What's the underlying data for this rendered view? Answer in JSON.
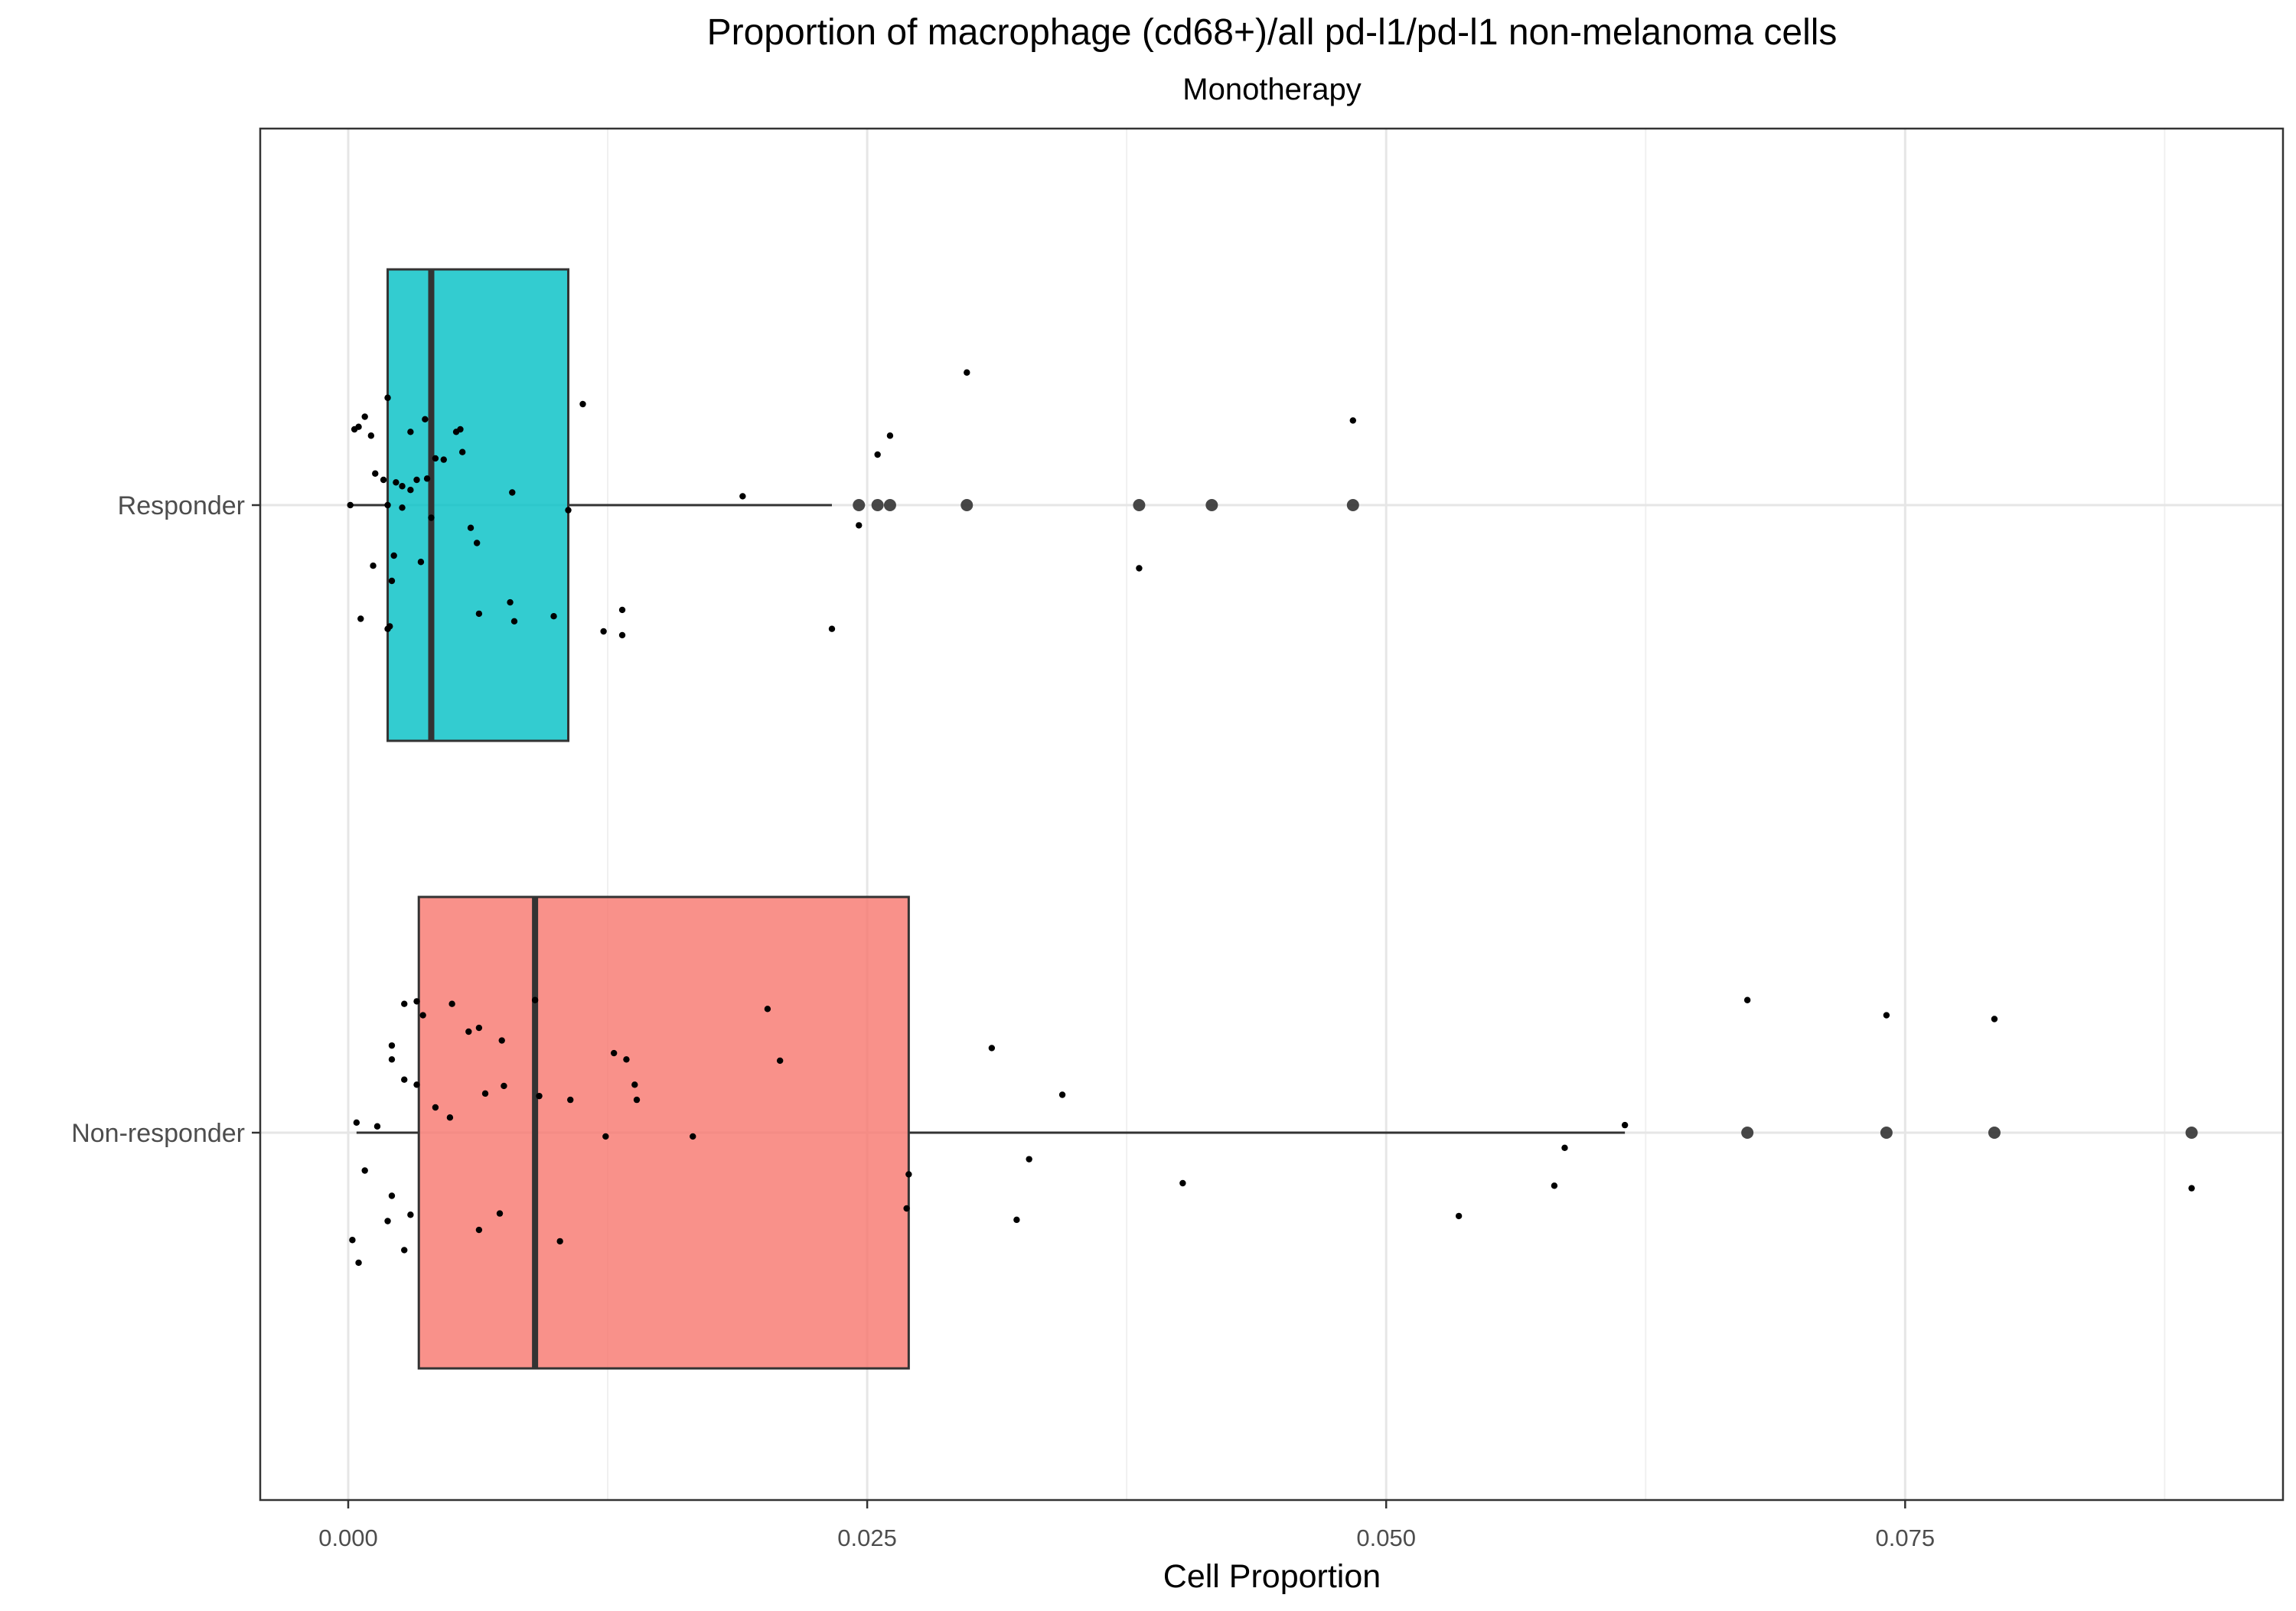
{
  "chart_data": {
    "type": "box",
    "orientation": "horizontal",
    "title": "Proportion of macrophage (cd68+)/all pd-l1/pd-l1 non-melanoma cells",
    "subtitle": "Monotherapy",
    "xlabel": "Cell Proportion",
    "ylabel": "",
    "xlim": [
      -0.0042,
      0.0934
    ],
    "x_ticks": [
      0.0,
      0.025,
      0.05,
      0.075
    ],
    "x_tick_labels": [
      "0.000",
      "0.025",
      "0.050",
      "0.075"
    ],
    "categories": [
      "Responder",
      "Non-responder"
    ],
    "grid": true,
    "legend": "none",
    "series": [
      {
        "category": "Responder",
        "color": "#00BFC4",
        "box": {
          "whisker_low": 0.0001,
          "q1": 0.0019,
          "median": 0.004,
          "q3": 0.0106,
          "whisker_high": 0.0233
        },
        "outliers": [
          0.0246,
          0.0255,
          0.0261,
          0.0298,
          0.0381,
          0.0416,
          0.0484
        ],
        "points": [
          [
            0.0001,
            0.0
          ],
          [
            0.0019,
            0.0
          ],
          [
            0.0106,
            -0.04
          ],
          [
            0.004,
            -0.1
          ],
          [
            0.0017,
            0.2
          ],
          [
            0.0003,
            0.6
          ],
          [
            0.0005,
            0.62
          ],
          [
            0.0008,
            0.7
          ],
          [
            0.0019,
            0.85
          ],
          [
            0.0037,
            0.68
          ],
          [
            0.0011,
            0.55
          ],
          [
            0.003,
            0.58
          ],
          [
            0.0052,
            0.58
          ],
          [
            0.0054,
            0.6
          ],
          [
            0.0055,
            0.42
          ],
          [
            0.0042,
            0.37
          ],
          [
            0.0013,
            0.25
          ],
          [
            0.0023,
            0.18
          ],
          [
            0.0026,
            0.15
          ],
          [
            0.003,
            0.12
          ],
          [
            0.0046,
            0.36
          ],
          [
            0.0033,
            0.2
          ],
          [
            0.0038,
            0.21
          ],
          [
            0.0079,
            0.1
          ],
          [
            0.0113,
            0.8
          ],
          [
            0.0026,
            -0.02
          ],
          [
            0.0059,
            -0.18
          ],
          [
            0.0062,
            -0.3
          ],
          [
            0.0022,
            -0.4
          ],
          [
            0.0035,
            -0.45
          ],
          [
            0.0012,
            -0.48
          ],
          [
            0.0021,
            -0.6
          ],
          [
            0.0006,
            -0.9
          ],
          [
            0.0019,
            -0.98
          ],
          [
            0.002,
            -0.96
          ],
          [
            0.0063,
            -0.86
          ],
          [
            0.0078,
            -0.77
          ],
          [
            0.008,
            -0.92
          ],
          [
            0.0099,
            -0.88
          ],
          [
            0.0123,
            -1.0
          ],
          [
            0.0132,
            -0.83
          ],
          [
            0.0132,
            -1.03
          ],
          [
            0.019,
            0.07
          ],
          [
            0.0233,
            -0.98
          ],
          [
            0.0246,
            -0.16
          ],
          [
            0.0255,
            0.4
          ],
          [
            0.0261,
            0.55
          ],
          [
            0.0298,
            1.05
          ],
          [
            0.0381,
            -0.5
          ],
          [
            0.0484,
            0.67
          ]
        ]
      },
      {
        "category": "Non-responder",
        "color": "#F8766D",
        "box": {
          "whisker_low": 0.0004,
          "q1": 0.0034,
          "median": 0.009,
          "q3": 0.027,
          "whisker_high": 0.0615
        },
        "outliers": [
          0.0674,
          0.0741,
          0.0793,
          0.0888
        ],
        "points": [
          [
            0.0004,
            0.08
          ],
          [
            0.0014,
            0.05
          ],
          [
            0.0008,
            -0.3
          ],
          [
            0.0002,
            -0.85
          ],
          [
            0.0005,
            -1.03
          ],
          [
            0.0021,
            -0.5
          ],
          [
            0.0019,
            -0.7
          ],
          [
            0.003,
            -0.65
          ],
          [
            0.0027,
            -0.93
          ],
          [
            0.0021,
            0.69
          ],
          [
            0.0021,
            0.58
          ],
          [
            0.0027,
            0.42
          ],
          [
            0.0033,
            0.38
          ],
          [
            0.0027,
            1.02
          ],
          [
            0.0033,
            1.04
          ],
          [
            0.0036,
            0.93
          ],
          [
            0.005,
            1.02
          ],
          [
            0.0058,
            0.8
          ],
          [
            0.0063,
            0.83
          ],
          [
            0.0074,
            0.73
          ],
          [
            0.0042,
            0.2
          ],
          [
            0.0049,
            0.12
          ],
          [
            0.0066,
            0.31
          ],
          [
            0.0075,
            0.37
          ],
          [
            0.0063,
            -0.77
          ],
          [
            0.0073,
            -0.64
          ],
          [
            0.009,
            1.05
          ],
          [
            0.0092,
            0.29
          ],
          [
            0.0102,
            -0.86
          ],
          [
            0.0107,
            0.26
          ],
          [
            0.0124,
            -0.03
          ],
          [
            0.0128,
            0.63
          ],
          [
            0.0134,
            0.58
          ],
          [
            0.0138,
            0.38
          ],
          [
            0.0139,
            0.26
          ],
          [
            0.0166,
            -0.03
          ],
          [
            0.0202,
            0.98
          ],
          [
            0.0208,
            0.57
          ],
          [
            0.027,
            -0.33
          ],
          [
            0.0269,
            -0.6
          ],
          [
            0.031,
            0.67
          ],
          [
            0.0322,
            -0.69
          ],
          [
            0.0328,
            -0.21
          ],
          [
            0.0344,
            0.3
          ],
          [
            0.0402,
            -0.4
          ],
          [
            0.0535,
            -0.66
          ],
          [
            0.0581,
            -0.42
          ],
          [
            0.0586,
            -0.12
          ],
          [
            0.0615,
            0.06
          ],
          [
            0.0674,
            1.05
          ],
          [
            0.0741,
            0.93
          ],
          [
            0.0793,
            0.9
          ],
          [
            0.0888,
            -0.44
          ]
        ]
      }
    ]
  }
}
